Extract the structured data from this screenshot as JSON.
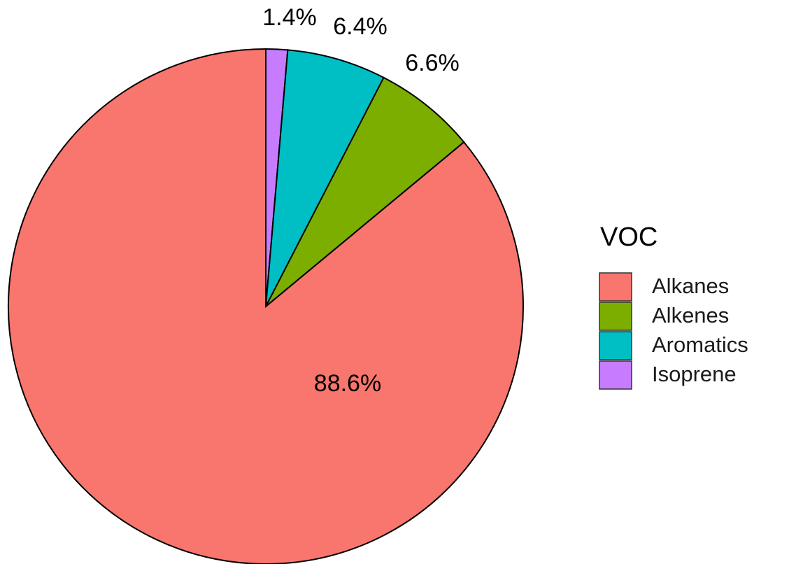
{
  "chart_data": {
    "type": "pie",
    "categories": [
      "Alkanes",
      "Alkenes",
      "Aromatics",
      "Isoprene"
    ],
    "values": [
      88.6,
      6.6,
      6.4,
      1.4
    ],
    "value_labels": [
      "88.6%",
      "6.6%",
      "6.4%",
      "1.4%"
    ],
    "colors": [
      "#f8766d",
      "#7cae00",
      "#00bfc4",
      "#c77cff"
    ],
    "legend_title": "VOC",
    "legend": "right"
  }
}
